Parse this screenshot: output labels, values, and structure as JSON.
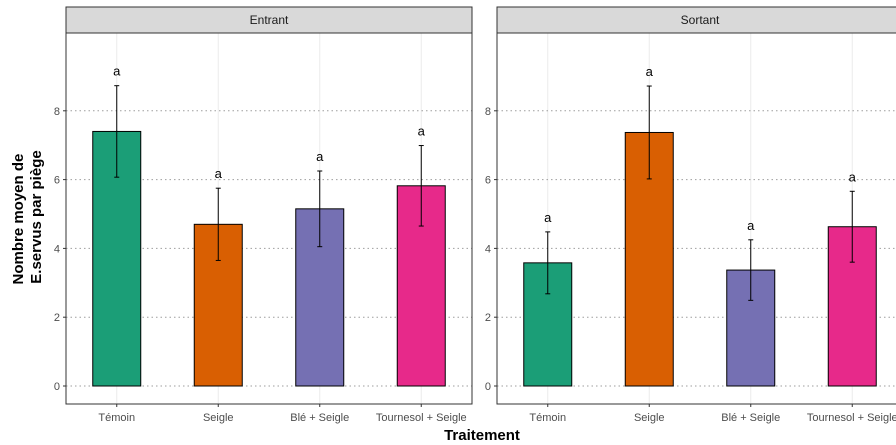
{
  "chart_data": {
    "type": "bar",
    "xlabel": "Traitement",
    "ylabel_lines": [
      "Nombre moyen de",
      "E.servus par piège"
    ],
    "categories": [
      "Témoin",
      "Seigle",
      "Blé + Seigle",
      "Tournesol + Seigle"
    ],
    "colors": [
      "#1b9e77",
      "#d95f02",
      "#7570b3",
      "#e7298a"
    ],
    "yticks": [
      0,
      2,
      4,
      6,
      8
    ],
    "ylim": [
      -0.5,
      10.3
    ],
    "grid": true,
    "panels": [
      {
        "title": "Entrant",
        "values": [
          7.4,
          4.7,
          5.15,
          5.82
        ],
        "error_low": [
          6.07,
          3.65,
          4.05,
          4.65
        ],
        "error_high": [
          8.73,
          5.75,
          6.25,
          6.99
        ],
        "labels": [
          "a",
          "a",
          "a",
          "a"
        ]
      },
      {
        "title": "Sortant",
        "values": [
          3.58,
          7.37,
          3.37,
          4.63
        ],
        "error_low": [
          2.68,
          6.02,
          2.49,
          3.6
        ],
        "error_high": [
          4.48,
          8.72,
          4.25,
          5.66
        ],
        "labels": [
          "a",
          "a",
          "a",
          "a"
        ]
      }
    ]
  }
}
